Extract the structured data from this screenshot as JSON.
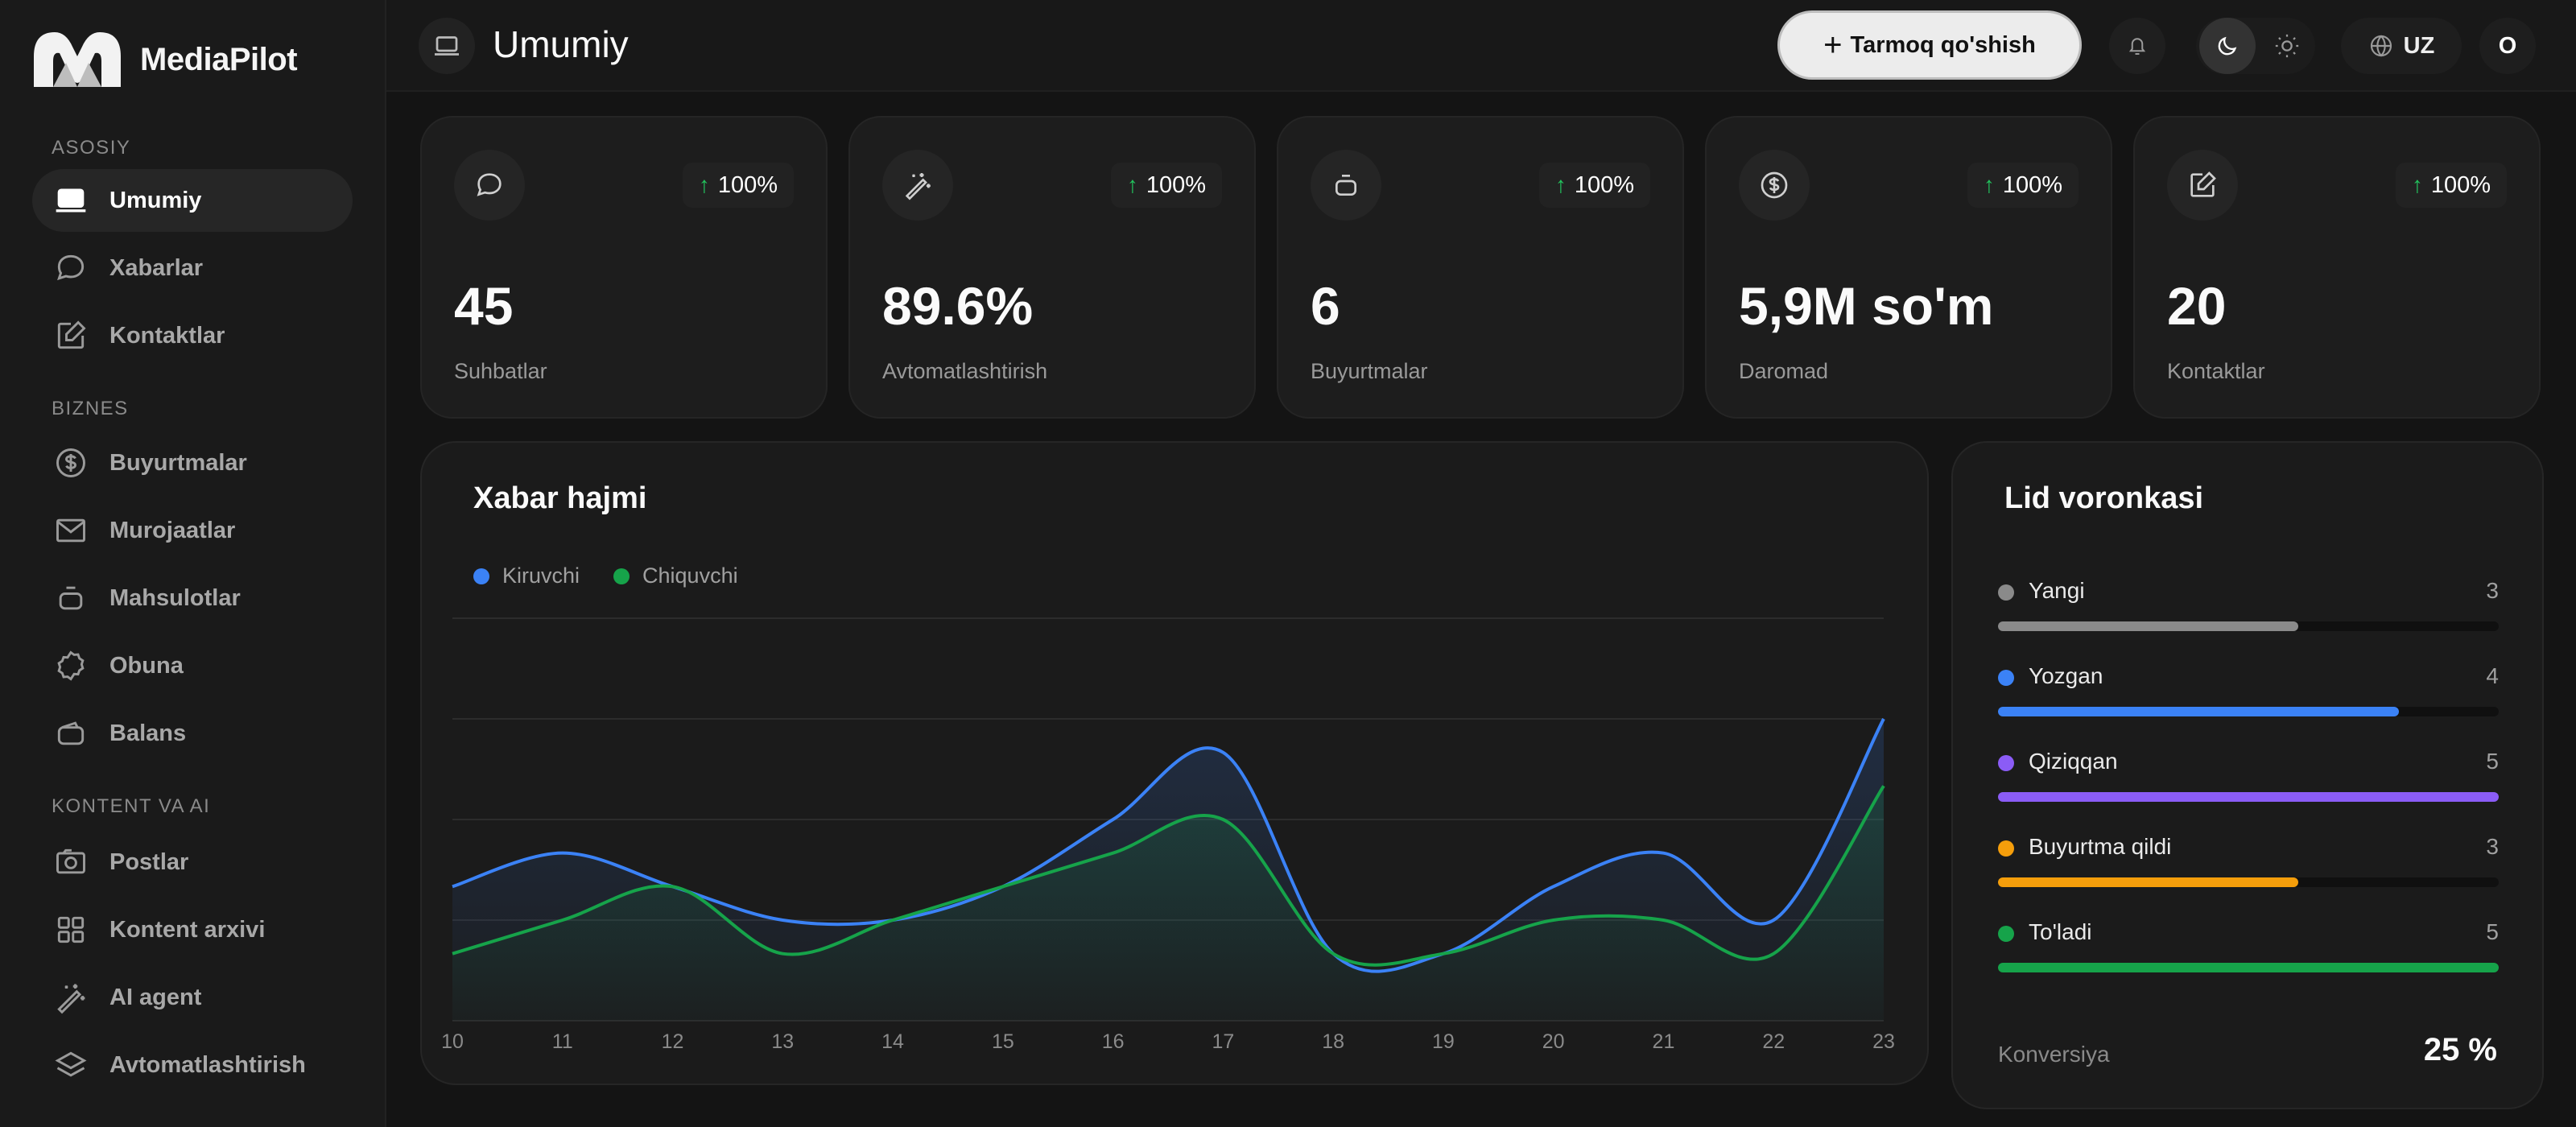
{
  "app": {
    "name": "MediaPilot"
  },
  "sidebar": {
    "sections": [
      {
        "label": "ASOSIY",
        "items": [
          {
            "label": "Umumiy",
            "icon": "laptop-icon",
            "active": true
          },
          {
            "label": "Xabarlar",
            "icon": "chat-bubble-icon"
          },
          {
            "label": "Kontaktlar",
            "icon": "edit-square-icon"
          }
        ]
      },
      {
        "label": "BIZNES",
        "items": [
          {
            "label": "Buyurtmalar",
            "icon": "dollar-circle-icon"
          },
          {
            "label": "Murojaatlar",
            "icon": "mail-icon"
          },
          {
            "label": "Mahsulotlar",
            "icon": "box-icon"
          },
          {
            "label": "Obuna",
            "icon": "badge-icon"
          },
          {
            "label": "Balans",
            "icon": "wallet-icon"
          }
        ]
      },
      {
        "label": "KONTENT VA AI",
        "items": [
          {
            "label": "Postlar",
            "icon": "camera-icon"
          },
          {
            "label": "Kontent arxivi",
            "icon": "grid-icon"
          },
          {
            "label": "AI agent",
            "icon": "magic-wand-icon"
          },
          {
            "label": "Avtomatlashtirish",
            "icon": "layers-icon"
          }
        ]
      }
    ]
  },
  "header": {
    "title": "Umumiy",
    "add_button": "Tarmoq qo'shish",
    "language": "UZ",
    "avatar_initial": "O"
  },
  "stats": [
    {
      "value": "45",
      "label": "Suhbatlar",
      "change": "100%",
      "icon": "chat-bubble-icon"
    },
    {
      "value": "89.6%",
      "label": "Avtomatlashtirish",
      "change": "100%",
      "icon": "magic-wand-icon"
    },
    {
      "value": "6",
      "label": "Buyurtmalar",
      "change": "100%",
      "icon": "box-icon"
    },
    {
      "value": "5,9M so'm",
      "label": "Daromad",
      "change": "100%",
      "icon": "dollar-circle-icon"
    },
    {
      "value": "20",
      "label": "Kontaktlar",
      "change": "100%",
      "icon": "edit-square-icon"
    }
  ],
  "chart_data": {
    "type": "area",
    "title": "Xabar hajmi",
    "categories": [
      "10",
      "11",
      "12",
      "13",
      "14",
      "15",
      "16",
      "17",
      "18",
      "19",
      "20",
      "21",
      "22",
      "23"
    ],
    "series": [
      {
        "name": "Kiruvchi",
        "color": "#3b82f6",
        "values": [
          4,
          5,
          4,
          3,
          3,
          4,
          6,
          8,
          2,
          2,
          4,
          5,
          3,
          9
        ]
      },
      {
        "name": "Chiquvchi",
        "color": "#16a34a",
        "values": [
          2,
          3,
          4,
          2,
          3,
          4,
          5,
          6,
          2,
          2,
          3,
          3,
          2,
          7
        ]
      }
    ],
    "ylim": [
      0,
      12
    ],
    "grid": true,
    "legend": "top-left"
  },
  "funnel": {
    "title": "Lid voronkasi",
    "items": [
      {
        "name": "Yangi",
        "count": "3",
        "color": "#8a8a8a",
        "fraction": 0.6
      },
      {
        "name": "Yozgan",
        "count": "4",
        "color": "#3b82f6",
        "fraction": 0.8
      },
      {
        "name": "Qiziqqan",
        "count": "5",
        "color": "#8b5cf6",
        "fraction": 1.0
      },
      {
        "name": "Buyurtma qildi",
        "count": "3",
        "color": "#f59e0b",
        "fraction": 0.6
      },
      {
        "name": "To'ladi",
        "count": "5",
        "color": "#16a34a",
        "fraction": 1.0
      }
    ],
    "conversion_label": "Konversiya",
    "conversion_value": "25 %"
  }
}
